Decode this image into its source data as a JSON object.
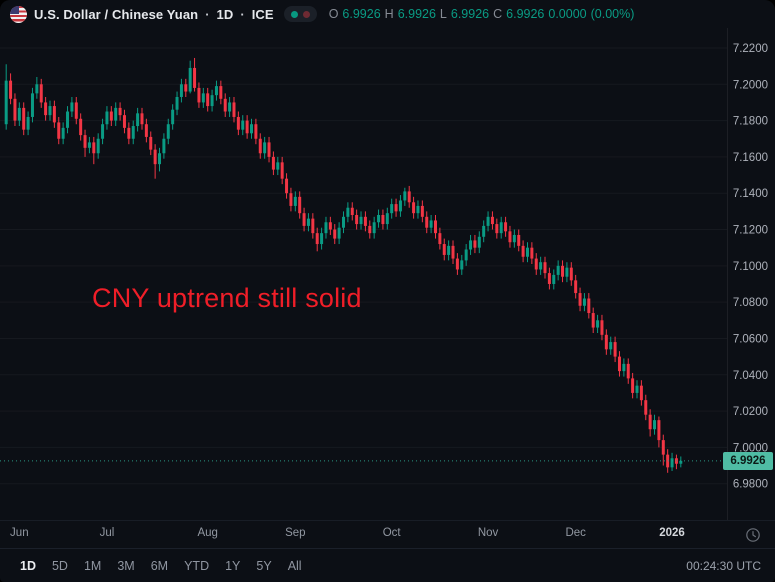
{
  "header": {
    "symbol_title": "U.S. Dollar / Chinese Yuan",
    "separator": "·",
    "interval": "1D",
    "exchange": "ICE",
    "status_dots": [
      "#089981",
      "#6e2a33"
    ],
    "ohlc": {
      "o_label": "O",
      "o": "6.9926",
      "h_label": "H",
      "h": "6.9926",
      "l_label": "L",
      "l": "6.9926",
      "c_label": "C",
      "c": "6.9926",
      "change": "0.0000",
      "change_pct": "(0.00%)"
    }
  },
  "annotation": {
    "text": "CNY uptrend still solid",
    "color": "#f01e28"
  },
  "chart_data": {
    "type": "candlestick",
    "title": "U.S. Dollar / Chinese Yuan · 1D · ICE",
    "interval": "1D",
    "legend_position": "top-left",
    "grid": "faint-horizontal",
    "price_range": {
      "min": 6.96,
      "max": 7.231
    },
    "y_ticks": [
      "7.2200",
      "7.2000",
      "7.1800",
      "7.1600",
      "7.1400",
      "7.1200",
      "7.1000",
      "7.0800",
      "7.0600",
      "7.0400",
      "7.0200",
      "7.0000",
      "6.9800"
    ],
    "x_ticks": [
      {
        "label": "Jun",
        "index": 3
      },
      {
        "label": "Jul",
        "index": 23
      },
      {
        "label": "Aug",
        "index": 46
      },
      {
        "label": "Sep",
        "index": 66
      },
      {
        "label": "Oct",
        "index": 88
      },
      {
        "label": "Nov",
        "index": 110
      },
      {
        "label": "Dec",
        "index": 130
      },
      {
        "label": "2026",
        "index": 152,
        "major": true
      }
    ],
    "last_price": 6.9926,
    "last_price_label": "6.9926",
    "colors": {
      "up": "#0a9b84",
      "down": "#f23645",
      "price_line": "#2ea58f",
      "price_label_bg": "#4fbca4",
      "price_label_text": "#0b1a16",
      "axis_text": "#aeb2bb"
    },
    "candles": [
      [
        7.178,
        7.211,
        7.175,
        7.202
      ],
      [
        7.202,
        7.206,
        7.189,
        7.192
      ],
      [
        7.192,
        7.195,
        7.177,
        7.18
      ],
      [
        7.18,
        7.19,
        7.177,
        7.187
      ],
      [
        7.187,
        7.19,
        7.172,
        7.175
      ],
      [
        7.175,
        7.185,
        7.172,
        7.182
      ],
      [
        7.182,
        7.198,
        7.179,
        7.195
      ],
      [
        7.195,
        7.204,
        7.192,
        7.2
      ],
      [
        7.2,
        7.203,
        7.187,
        7.19
      ],
      [
        7.19,
        7.193,
        7.18,
        7.183
      ],
      [
        7.183,
        7.191,
        7.18,
        7.188
      ],
      [
        7.188,
        7.191,
        7.176,
        7.179
      ],
      [
        7.179,
        7.182,
        7.167,
        7.17
      ],
      [
        7.17,
        7.179,
        7.167,
        7.176
      ],
      [
        7.176,
        7.188,
        7.173,
        7.185
      ],
      [
        7.185,
        7.193,
        7.182,
        7.19
      ],
      [
        7.19,
        7.193,
        7.178,
        7.181
      ],
      [
        7.181,
        7.184,
        7.169,
        7.172
      ],
      [
        7.172,
        7.175,
        7.16,
        7.165
      ],
      [
        7.165,
        7.171,
        7.162,
        7.168
      ],
      [
        7.168,
        7.171,
        7.156,
        7.162
      ],
      [
        7.162,
        7.173,
        7.159,
        7.17
      ],
      [
        7.17,
        7.181,
        7.167,
        7.178
      ],
      [
        7.178,
        7.188,
        7.175,
        7.185
      ],
      [
        7.185,
        7.188,
        7.177,
        7.18
      ],
      [
        7.18,
        7.19,
        7.177,
        7.187
      ],
      [
        7.187,
        7.19,
        7.18,
        7.183
      ],
      [
        7.183,
        7.186,
        7.173,
        7.176
      ],
      [
        7.176,
        7.179,
        7.167,
        7.17
      ],
      [
        7.17,
        7.18,
        7.167,
        7.177
      ],
      [
        7.177,
        7.187,
        7.174,
        7.184
      ],
      [
        7.184,
        7.187,
        7.175,
        7.178
      ],
      [
        7.178,
        7.181,
        7.168,
        7.171
      ],
      [
        7.171,
        7.174,
        7.161,
        7.164
      ],
      [
        7.164,
        7.167,
        7.148,
        7.156
      ],
      [
        7.156,
        7.165,
        7.152,
        7.162
      ],
      [
        7.162,
        7.173,
        7.159,
        7.17
      ],
      [
        7.17,
        7.181,
        7.167,
        7.178
      ],
      [
        7.178,
        7.189,
        7.175,
        7.186
      ],
      [
        7.186,
        7.196,
        7.183,
        7.193
      ],
      [
        7.193,
        7.203,
        7.19,
        7.2
      ],
      [
        7.2,
        7.203,
        7.193,
        7.196
      ],
      [
        7.196,
        7.213,
        7.195,
        7.209
      ],
      [
        7.209,
        7.2145,
        7.196,
        7.198
      ],
      [
        7.198,
        7.201,
        7.187,
        7.19
      ],
      [
        7.19,
        7.198,
        7.187,
        7.195
      ],
      [
        7.195,
        7.198,
        7.185,
        7.188
      ],
      [
        7.188,
        7.197,
        7.185,
        7.194
      ],
      [
        7.194,
        7.202,
        7.191,
        7.199
      ],
      [
        7.199,
        7.202,
        7.189,
        7.192
      ],
      [
        7.192,
        7.195,
        7.182,
        7.185
      ],
      [
        7.185,
        7.193,
        7.182,
        7.19
      ],
      [
        7.19,
        7.193,
        7.179,
        7.182
      ],
      [
        7.182,
        7.185,
        7.172,
        7.175
      ],
      [
        7.175,
        7.183,
        7.172,
        7.18
      ],
      [
        7.18,
        7.183,
        7.17,
        7.173
      ],
      [
        7.173,
        7.181,
        7.17,
        7.178
      ],
      [
        7.178,
        7.181,
        7.167,
        7.17
      ],
      [
        7.17,
        7.173,
        7.159,
        7.162
      ],
      [
        7.162,
        7.171,
        7.159,
        7.168
      ],
      [
        7.168,
        7.171,
        7.157,
        7.16
      ],
      [
        7.16,
        7.163,
        7.15,
        7.153
      ],
      [
        7.153,
        7.16,
        7.15,
        7.157
      ],
      [
        7.157,
        7.16,
        7.145,
        7.148
      ],
      [
        7.148,
        7.151,
        7.137,
        7.14
      ],
      [
        7.14,
        7.143,
        7.13,
        7.133
      ],
      [
        7.133,
        7.141,
        7.13,
        7.138
      ],
      [
        7.138,
        7.141,
        7.126,
        7.129
      ],
      [
        7.129,
        7.132,
        7.119,
        7.122
      ],
      [
        7.122,
        7.129,
        7.119,
        7.126
      ],
      [
        7.126,
        7.129,
        7.115,
        7.118
      ],
      [
        7.118,
        7.121,
        7.108,
        7.112
      ],
      [
        7.112,
        7.121,
        7.109,
        7.118
      ],
      [
        7.118,
        7.127,
        7.115,
        7.124
      ],
      [
        7.124,
        7.127,
        7.117,
        7.12
      ],
      [
        7.12,
        7.123,
        7.112,
        7.115
      ],
      [
        7.115,
        7.124,
        7.112,
        7.121
      ],
      [
        7.121,
        7.13,
        7.118,
        7.127
      ],
      [
        7.127,
        7.135,
        7.124,
        7.132
      ],
      [
        7.132,
        7.135,
        7.125,
        7.128
      ],
      [
        7.128,
        7.131,
        7.12,
        7.123
      ],
      [
        7.123,
        7.13,
        7.12,
        7.127
      ],
      [
        7.127,
        7.13,
        7.119,
        7.122
      ],
      [
        7.122,
        7.125,
        7.115,
        7.118
      ],
      [
        7.118,
        7.127,
        7.115,
        7.124
      ],
      [
        7.124,
        7.131,
        7.121,
        7.128
      ],
      [
        7.128,
        7.131,
        7.12,
        7.123
      ],
      [
        7.123,
        7.132,
        7.12,
        7.129
      ],
      [
        7.129,
        7.137,
        7.126,
        7.134
      ],
      [
        7.134,
        7.137,
        7.127,
        7.13
      ],
      [
        7.13,
        7.139,
        7.127,
        7.136
      ],
      [
        7.136,
        7.143,
        7.133,
        7.141
      ],
      [
        7.141,
        7.144,
        7.132,
        7.135
      ],
      [
        7.135,
        7.138,
        7.126,
        7.129
      ],
      [
        7.129,
        7.136,
        7.126,
        7.133
      ],
      [
        7.133,
        7.136,
        7.124,
        7.127
      ],
      [
        7.127,
        7.13,
        7.118,
        7.121
      ],
      [
        7.121,
        7.128,
        7.118,
        7.125
      ],
      [
        7.125,
        7.128,
        7.115,
        7.118
      ],
      [
        7.118,
        7.121,
        7.109,
        7.112
      ],
      [
        7.112,
        7.115,
        7.103,
        7.106
      ],
      [
        7.106,
        7.114,
        7.103,
        7.111
      ],
      [
        7.111,
        7.114,
        7.101,
        7.104
      ],
      [
        7.104,
        7.107,
        7.095,
        7.098
      ],
      [
        7.098,
        7.106,
        7.095,
        7.103
      ],
      [
        7.103,
        7.112,
        7.1,
        7.109
      ],
      [
        7.109,
        7.117,
        7.106,
        7.114
      ],
      [
        7.114,
        7.117,
        7.107,
        7.11
      ],
      [
        7.11,
        7.119,
        7.107,
        7.116
      ],
      [
        7.116,
        7.125,
        7.113,
        7.122
      ],
      [
        7.122,
        7.13,
        7.119,
        7.127
      ],
      [
        7.127,
        7.13,
        7.12,
        7.123
      ],
      [
        7.123,
        7.126,
        7.115,
        7.118
      ],
      [
        7.118,
        7.127,
        7.115,
        7.124
      ],
      [
        7.124,
        7.127,
        7.116,
        7.119
      ],
      [
        7.119,
        7.122,
        7.11,
        7.113
      ],
      [
        7.113,
        7.12,
        7.11,
        7.117
      ],
      [
        7.117,
        7.12,
        7.108,
        7.111
      ],
      [
        7.111,
        7.114,
        7.102,
        7.105
      ],
      [
        7.105,
        7.113,
        7.102,
        7.11
      ],
      [
        7.11,
        7.113,
        7.101,
        7.104
      ],
      [
        7.104,
        7.107,
        7.095,
        7.098
      ],
      [
        7.098,
        7.105,
        7.095,
        7.102
      ],
      [
        7.102,
        7.105,
        7.093,
        7.096
      ],
      [
        7.096,
        7.099,
        7.087,
        7.09
      ],
      [
        7.09,
        7.098,
        7.087,
        7.095
      ],
      [
        7.095,
        7.103,
        7.092,
        7.1
      ],
      [
        7.1,
        7.103,
        7.091,
        7.094
      ],
      [
        7.094,
        7.102,
        7.091,
        7.099
      ],
      [
        7.099,
        7.102,
        7.089,
        7.092
      ],
      [
        7.092,
        7.095,
        7.082,
        7.085
      ],
      [
        7.085,
        7.088,
        7.075,
        7.078
      ],
      [
        7.078,
        7.085,
        7.075,
        7.082
      ],
      [
        7.082,
        7.085,
        7.071,
        7.074
      ],
      [
        7.074,
        7.077,
        7.063,
        7.066
      ],
      [
        7.066,
        7.073,
        7.063,
        7.07
      ],
      [
        7.07,
        7.073,
        7.059,
        7.062
      ],
      [
        7.062,
        7.065,
        7.051,
        7.054
      ],
      [
        7.054,
        7.061,
        7.051,
        7.058
      ],
      [
        7.058,
        7.061,
        7.047,
        7.05
      ],
      [
        7.05,
        7.053,
        7.039,
        7.042
      ],
      [
        7.042,
        7.049,
        7.039,
        7.046
      ],
      [
        7.046,
        7.049,
        7.035,
        7.038
      ],
      [
        7.038,
        7.041,
        7.027,
        7.03
      ],
      [
        7.03,
        7.037,
        7.027,
        7.034
      ],
      [
        7.034,
        7.037,
        7.023,
        7.026
      ],
      [
        7.026,
        7.029,
        7.015,
        7.018
      ],
      [
        7.018,
        7.021,
        7.006,
        7.01
      ],
      [
        7.01,
        7.018,
        7.007,
        7.015
      ],
      [
        7.015,
        7.017,
        7.0,
        7.004
      ],
      [
        7.004,
        7.007,
        6.99,
        6.996
      ],
      [
        6.996,
        6.999,
        6.986,
        6.989
      ],
      [
        6.989,
        6.997,
        6.987,
        6.994
      ],
      [
        6.994,
        6.996,
        6.988,
        6.991
      ],
      [
        6.991,
        6.995,
        6.989,
        6.9926
      ]
    ]
  },
  "toolbar": {
    "ranges": [
      {
        "label": "1D",
        "active": true
      },
      {
        "label": "5D"
      },
      {
        "label": "1M"
      },
      {
        "label": "3M"
      },
      {
        "label": "6M"
      },
      {
        "label": "YTD"
      },
      {
        "label": "1Y"
      },
      {
        "label": "5Y"
      },
      {
        "label": "All"
      }
    ],
    "timestamp": "00:24:30 UTC"
  }
}
